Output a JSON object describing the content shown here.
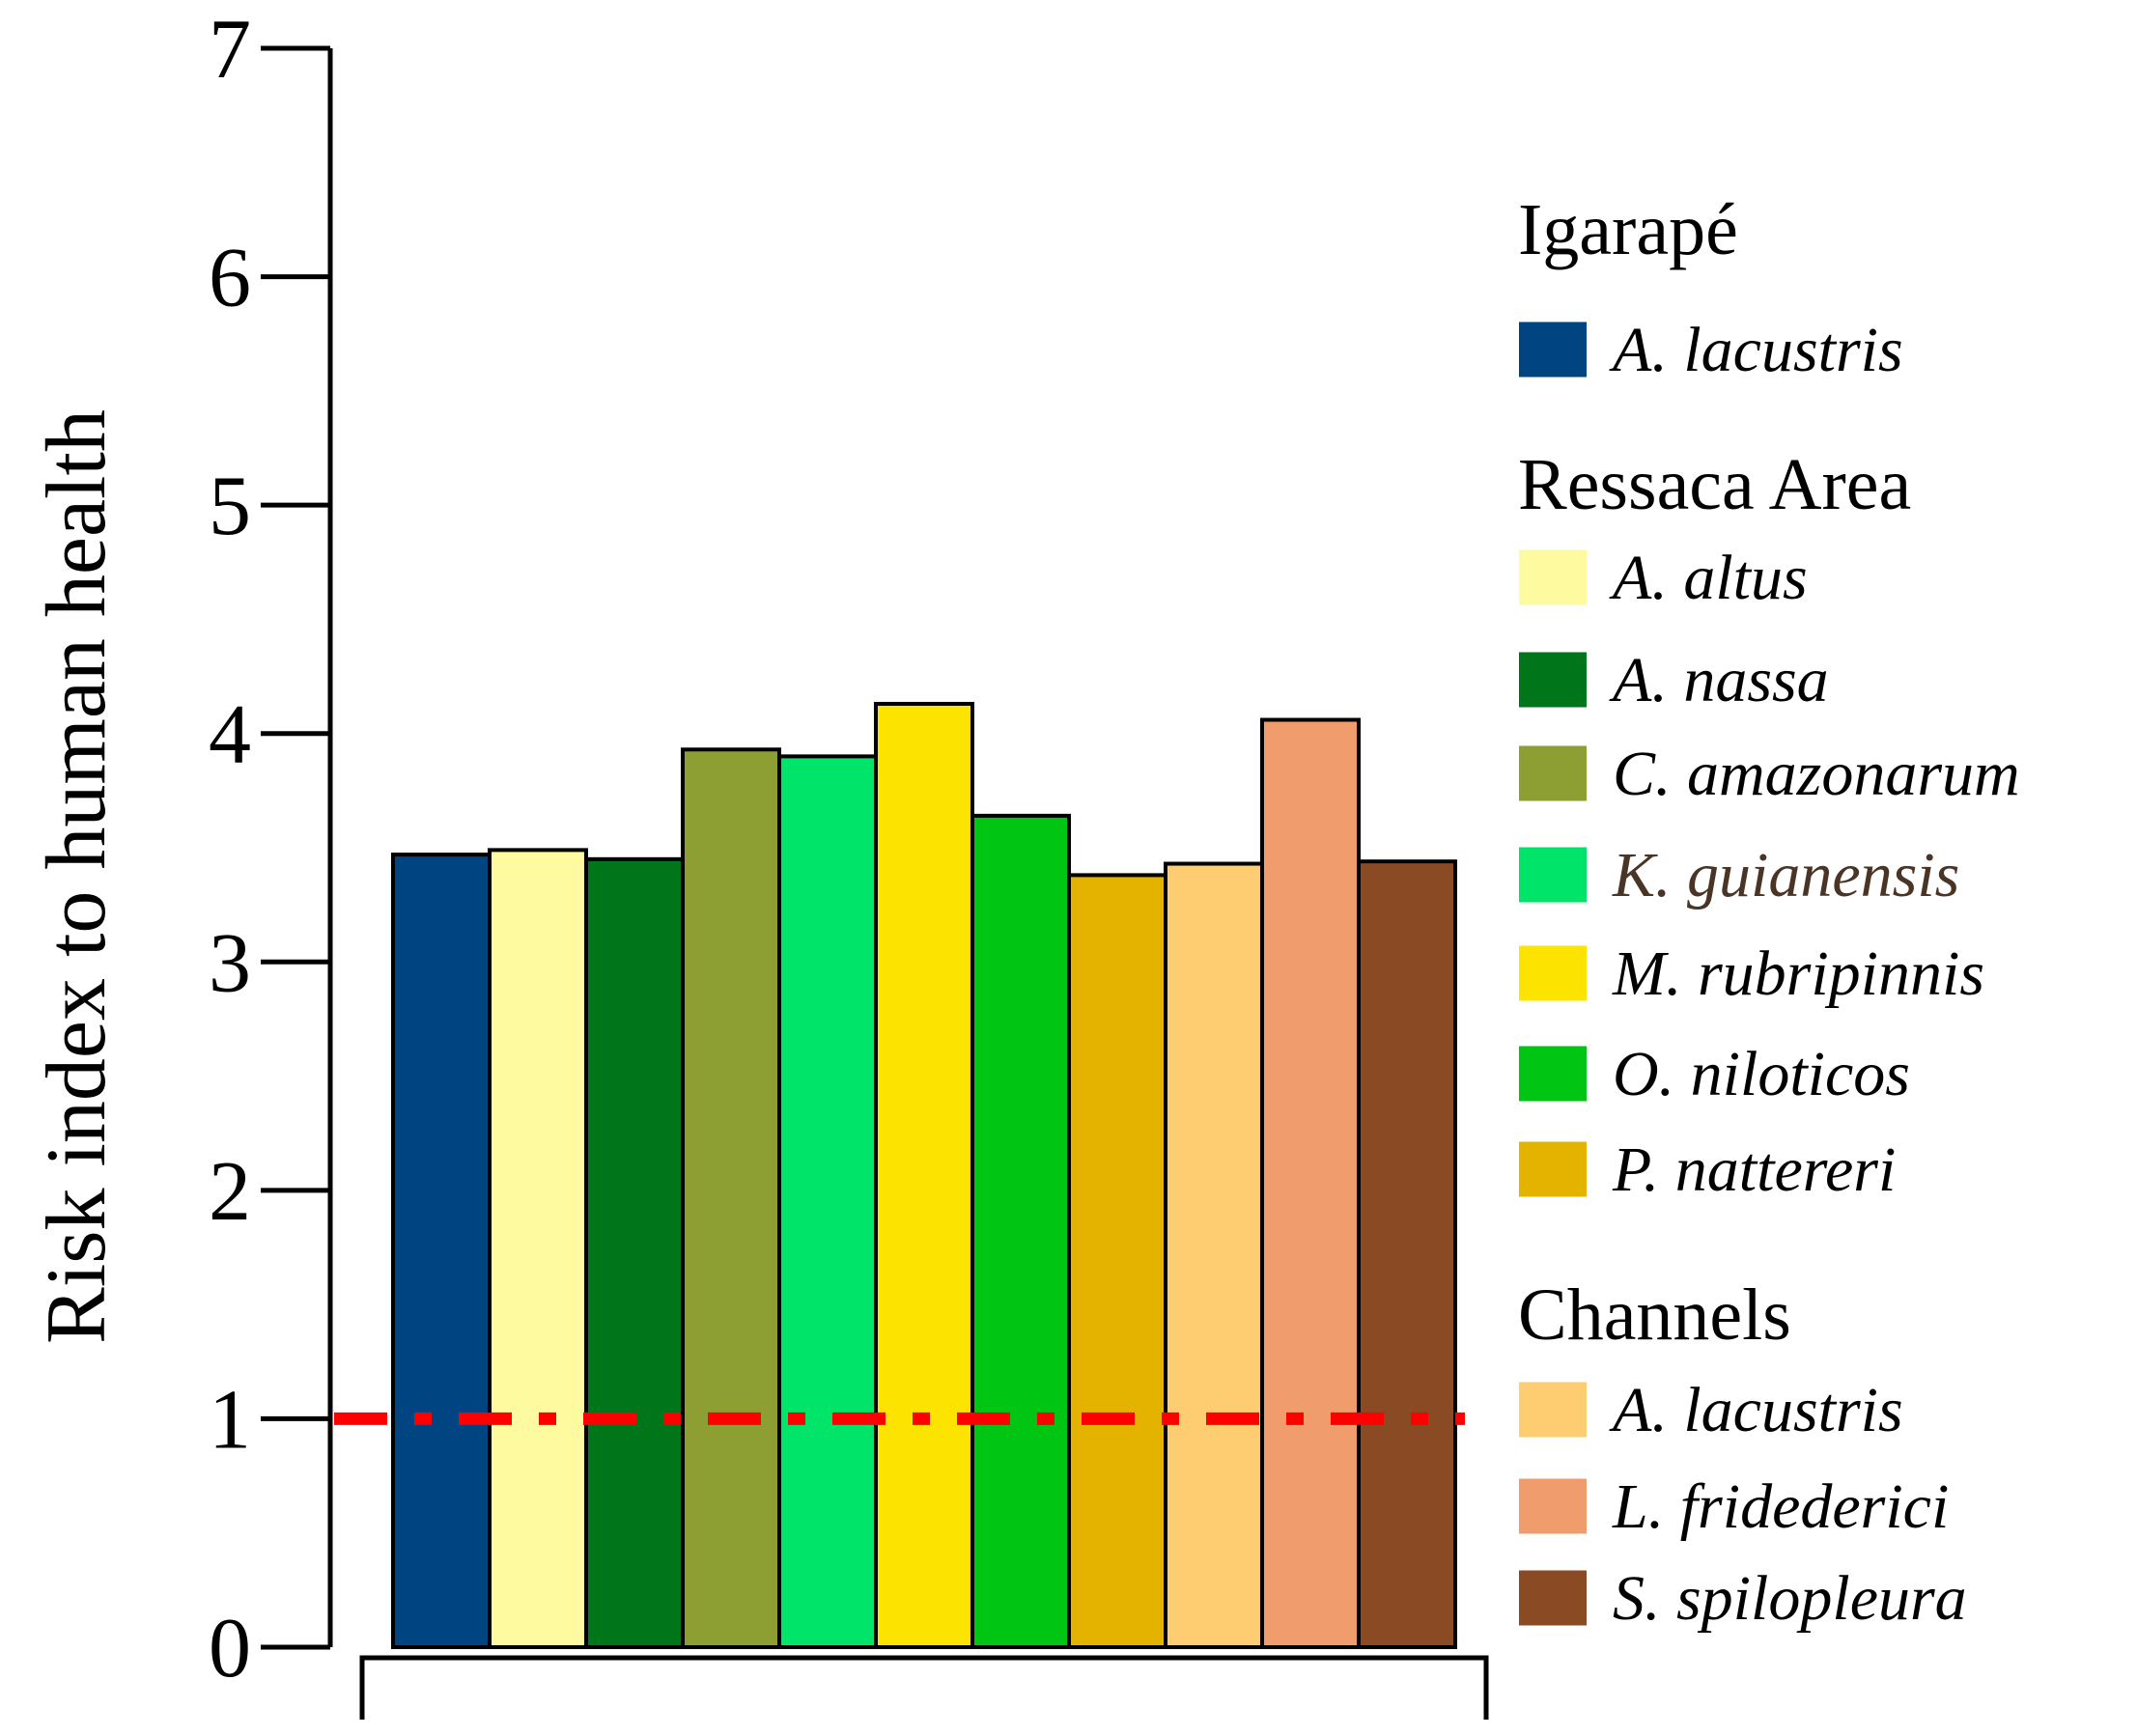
{
  "chart_data": {
    "type": "bar",
    "title": "",
    "xlabel": "",
    "ylabel": "Risk index to human health",
    "ylim": [
      0,
      7
    ],
    "yticks": [
      "0",
      "1",
      "2",
      "3",
      "4",
      "5",
      "6",
      "7"
    ],
    "grid": false,
    "legend_position": "right",
    "reference_line": {
      "value": 1,
      "color": "#ff0000",
      "style": "dash-dot"
    },
    "groups": [
      {
        "title": "Igarapé",
        "items": [
          {
            "name": "A. lacustris",
            "value": 3.47,
            "color": "#004482"
          }
        ]
      },
      {
        "title": "Ressaca Area",
        "items": [
          {
            "name": "A. altus",
            "value": 3.49,
            "color": "#fefa9f"
          },
          {
            "name": "A. nassa",
            "value": 3.45,
            "color": "#007519"
          },
          {
            "name": "C. amazonarum",
            "value": 3.93,
            "color": "#8d9e32"
          },
          {
            "name": "K. guianensis",
            "value": 3.9,
            "color": "#00e469",
            "label_color": "#4a3426"
          },
          {
            "name": "M. rubripinnis",
            "value": 4.13,
            "color": "#fde300"
          },
          {
            "name": "O. niloticos",
            "value": 3.64,
            "color": "#00c613"
          },
          {
            "name": "P. nattereri",
            "value": 3.38,
            "color": "#e4b300"
          }
        ]
      },
      {
        "title": "Channels",
        "items": [
          {
            "name": "A. lacustris",
            "value": 3.43,
            "color": "#fecd72"
          },
          {
            "name": "L. fridederici",
            "value": 4.06,
            "color": "#f19c6c"
          },
          {
            "name": "S. spilopleura",
            "value": 3.44,
            "color": "#8a4a23"
          }
        ]
      }
    ]
  }
}
